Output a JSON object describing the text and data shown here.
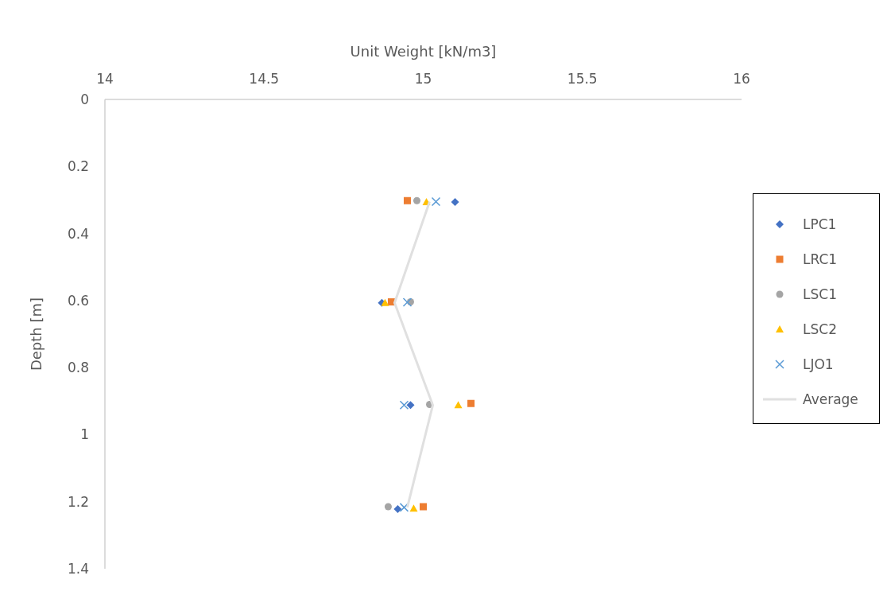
{
  "chart_data": {
    "type": "scatter",
    "xlabel": "Unit Weight [kN/m3]",
    "ylabel": "Depth [m]",
    "xlim": [
      14,
      16
    ],
    "xticks": [
      14,
      14.5,
      15,
      15.5,
      16
    ],
    "ylim": [
      1.4,
      0
    ],
    "yticks": [
      0,
      0.2,
      0.4,
      0.6,
      0.8,
      1,
      1.2,
      1.4
    ],
    "legend": "right",
    "series": [
      {
        "name": "LPC1",
        "color": "#4472c4",
        "marker": "diamond",
        "x": [
          15.1,
          14.87,
          14.96,
          14.92
        ],
        "values": [
          0.306,
          0.607,
          0.912,
          1.222
        ]
      },
      {
        "name": "LRC1",
        "color": "#ed7d31",
        "marker": "square",
        "x": [
          14.95,
          14.9,
          15.15,
          15.0
        ],
        "values": [
          0.302,
          0.604,
          0.907,
          1.215
        ]
      },
      {
        "name": "LSC1",
        "color": "#a5a5a5",
        "marker": "circle",
        "x": [
          14.98,
          14.96,
          15.02,
          14.89
        ],
        "values": [
          0.302,
          0.604,
          0.91,
          1.215
        ]
      },
      {
        "name": "LSC2",
        "color": "#ffc000",
        "marker": "triangle",
        "x": [
          15.01,
          14.88,
          15.11,
          14.97
        ],
        "values": [
          0.306,
          0.607,
          0.912,
          1.22
        ]
      },
      {
        "name": "LJO1",
        "color": "#5b9bd5",
        "marker": "cross",
        "x": [
          15.04,
          14.95,
          14.94,
          14.94
        ],
        "values": [
          0.305,
          0.605,
          0.912,
          1.217
        ]
      },
      {
        "name": "Average",
        "type": "line",
        "color": "#e0e0e0",
        "marker": "none",
        "x": [
          15.02,
          14.91,
          15.03,
          14.95
        ],
        "values": [
          0.305,
          0.607,
          0.912,
          1.217
        ]
      }
    ]
  }
}
